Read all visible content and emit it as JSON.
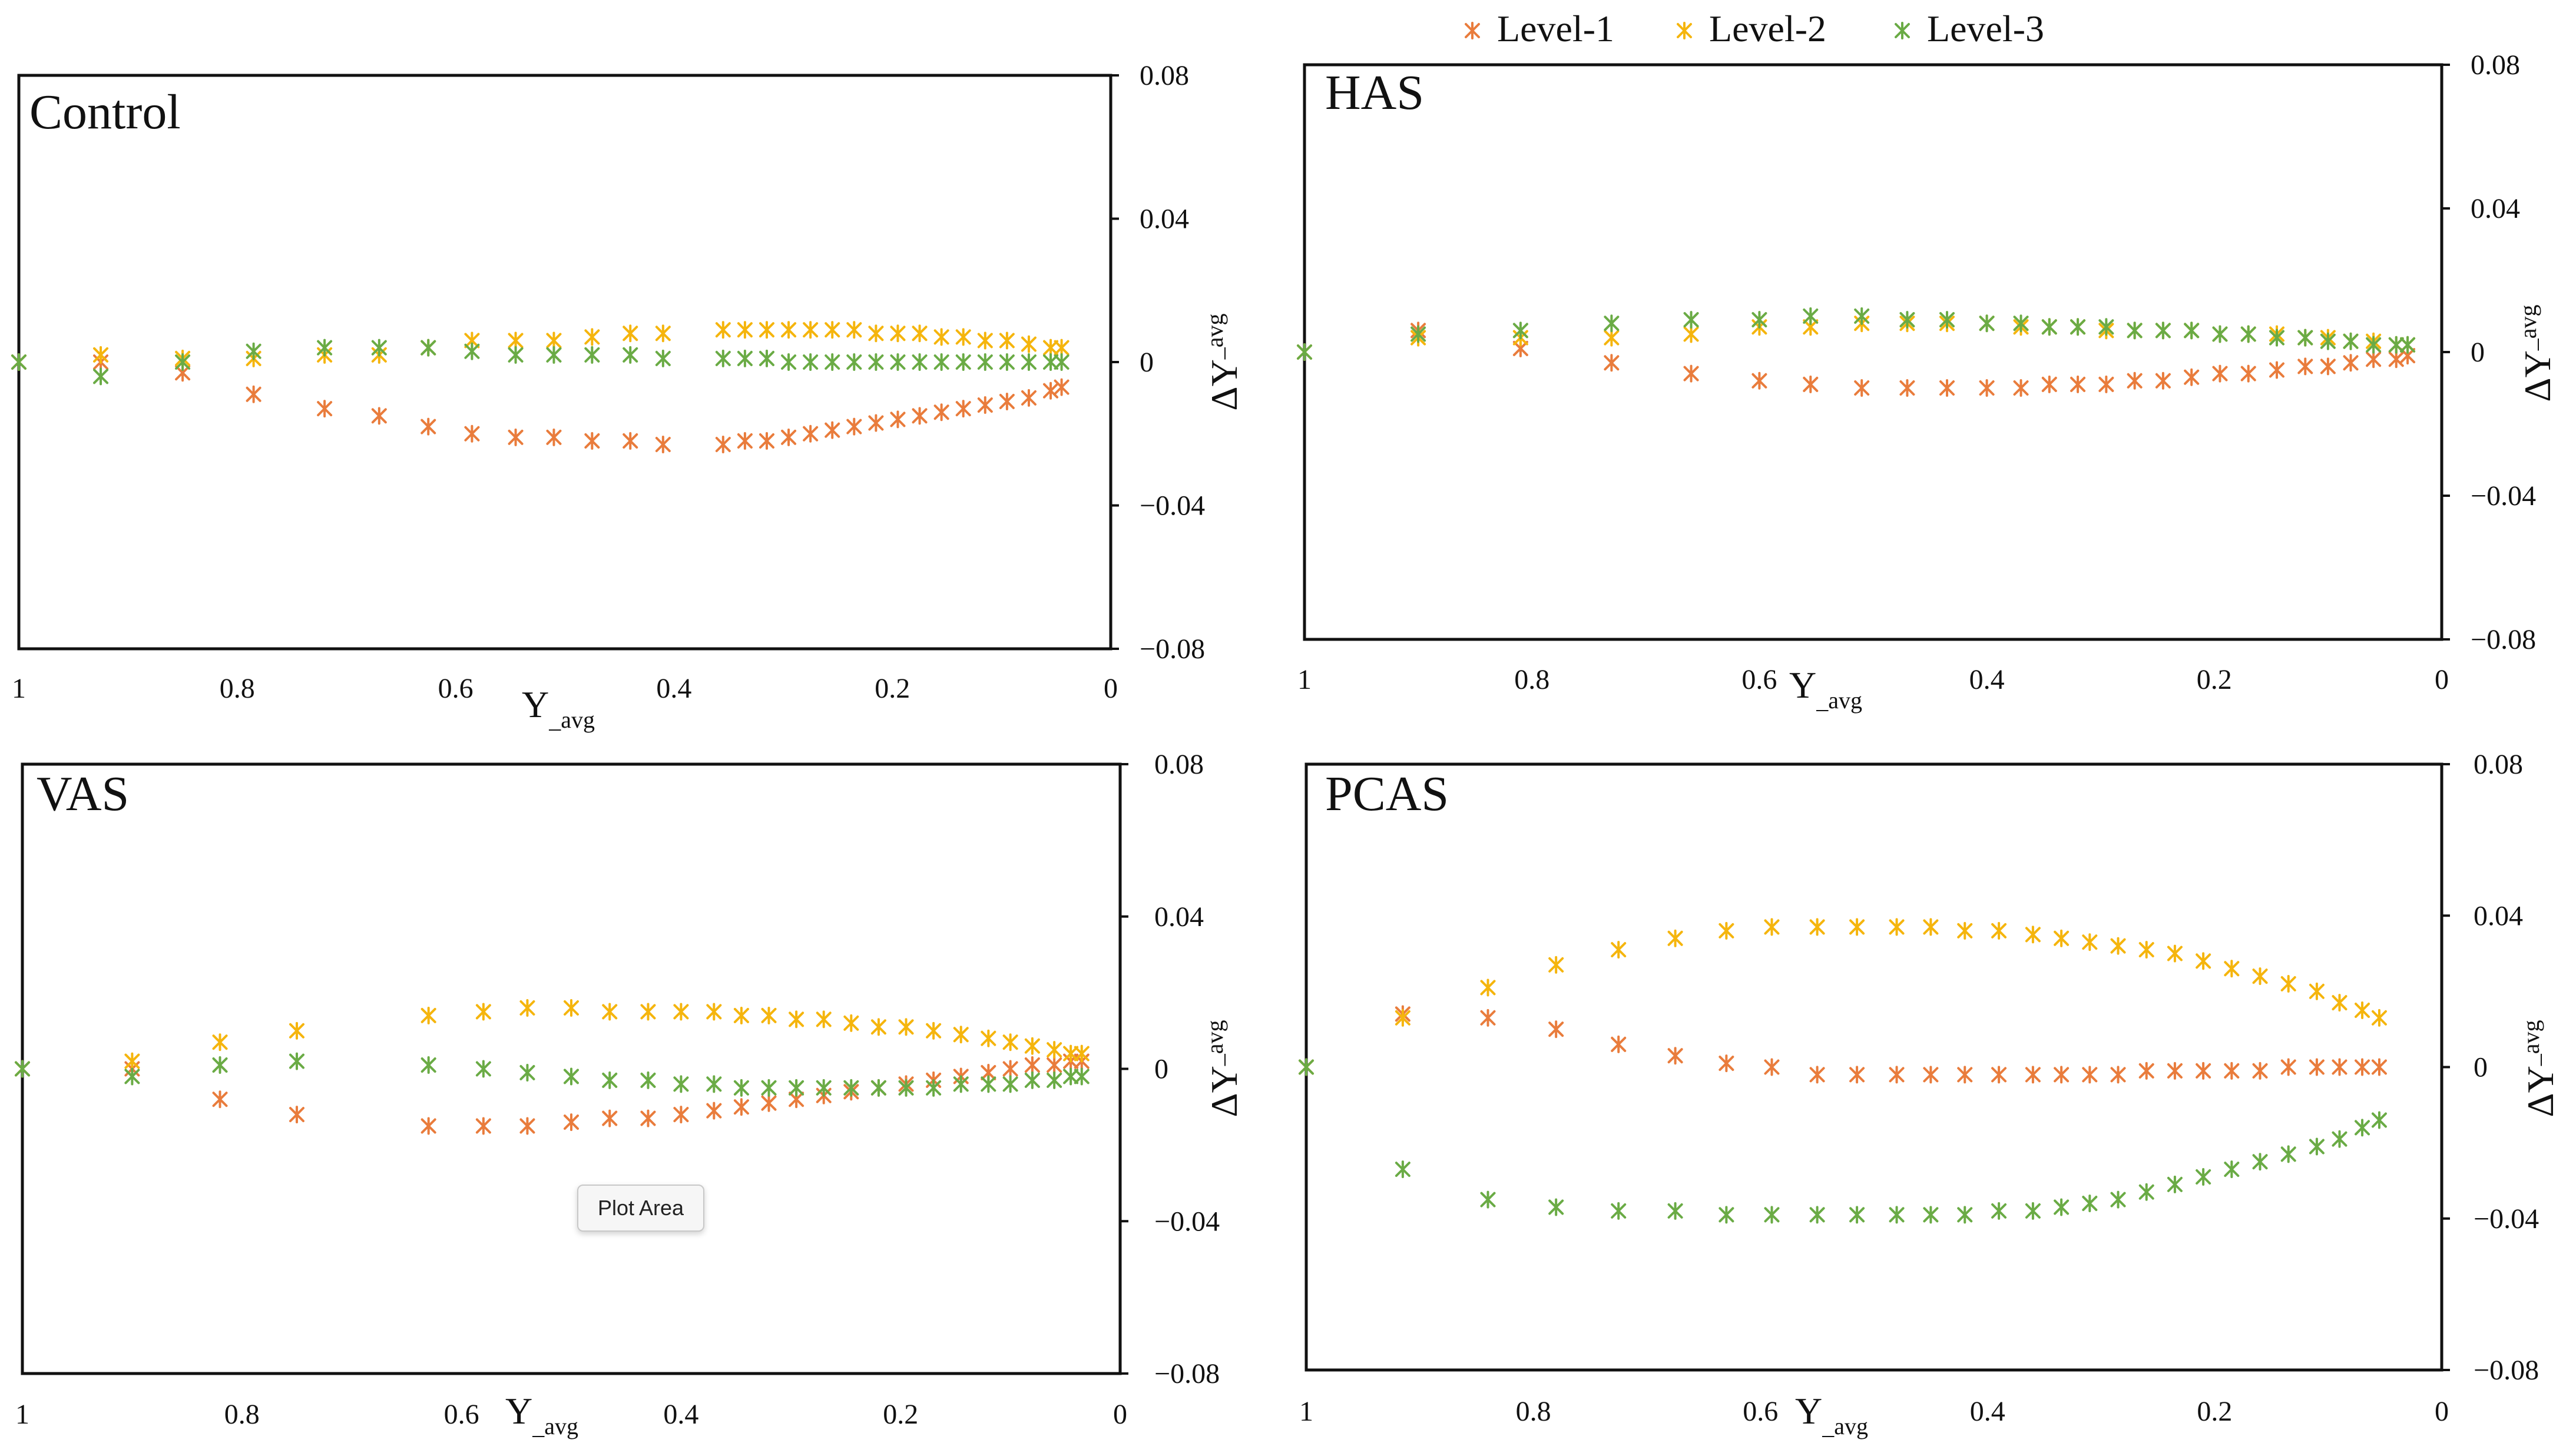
{
  "chart_data": [
    {
      "type": "scatter",
      "title": "Control",
      "xlabel": "Y_avg",
      "ylabel": "ΔY_avg",
      "xlim": [
        1,
        0
      ],
      "ylim": [
        -0.08,
        0.08
      ],
      "xticks": [
        "1",
        "0.8",
        "0.6",
        "0.4",
        "0.2",
        "0"
      ],
      "yticks": [
        "0.08",
        "0.04",
        "0",
        "−0.04",
        "−0.08"
      ],
      "series": [
        {
          "name": "Level-1",
          "x": [
            1,
            0.925,
            0.85,
            0.785,
            0.72,
            0.67,
            0.625,
            0.585,
            0.545,
            0.51,
            0.475,
            0.44,
            0.41,
            0.355,
            0.335,
            0.315,
            0.295,
            0.275,
            0.255,
            0.235,
            0.215,
            0.195,
            0.175,
            0.155,
            0.135,
            0.115,
            0.095,
            0.075,
            0.055,
            0.045
          ],
          "y": [
            0,
            0,
            -0.003,
            -0.009,
            -0.013,
            -0.015,
            -0.018,
            -0.02,
            -0.021,
            -0.021,
            -0.022,
            -0.022,
            -0.023,
            -0.023,
            -0.022,
            -0.022,
            -0.021,
            -0.02,
            -0.019,
            -0.018,
            -0.017,
            -0.016,
            -0.015,
            -0.014,
            -0.013,
            -0.012,
            -0.011,
            -0.01,
            -0.008,
            -0.007
          ]
        },
        {
          "name": "Level-2",
          "x": [
            1,
            0.925,
            0.85,
            0.785,
            0.72,
            0.67,
            0.625,
            0.585,
            0.545,
            0.51,
            0.475,
            0.44,
            0.41,
            0.355,
            0.335,
            0.315,
            0.295,
            0.275,
            0.255,
            0.235,
            0.215,
            0.195,
            0.175,
            0.155,
            0.135,
            0.115,
            0.095,
            0.075,
            0.055,
            0.045
          ],
          "y": [
            0,
            0.002,
            0.001,
            0.001,
            0.002,
            0.002,
            0.004,
            0.006,
            0.006,
            0.006,
            0.007,
            0.008,
            0.008,
            0.009,
            0.009,
            0.009,
            0.009,
            0.009,
            0.009,
            0.009,
            0.008,
            0.008,
            0.008,
            0.007,
            0.007,
            0.006,
            0.006,
            0.005,
            0.004,
            0.004
          ]
        },
        {
          "name": "Level-3",
          "x": [
            1,
            0.925,
            0.85,
            0.785,
            0.72,
            0.67,
            0.625,
            0.585,
            0.545,
            0.51,
            0.475,
            0.44,
            0.41,
            0.355,
            0.335,
            0.315,
            0.295,
            0.275,
            0.255,
            0.235,
            0.215,
            0.195,
            0.175,
            0.155,
            0.135,
            0.115,
            0.095,
            0.075,
            0.055,
            0.045
          ],
          "y": [
            0,
            -0.004,
            0,
            0.003,
            0.004,
            0.004,
            0.004,
            0.003,
            0.002,
            0.002,
            0.002,
            0.002,
            0.001,
            0.001,
            0.001,
            0.001,
            0,
            0,
            0,
            0,
            0,
            0,
            0,
            0,
            0,
            0,
            0,
            0,
            0,
            0
          ]
        }
      ]
    },
    {
      "type": "scatter",
      "title": "HAS",
      "xlabel": "Y_avg",
      "ylabel": "ΔY_avg",
      "xlim": [
        1,
        0
      ],
      "ylim": [
        -0.08,
        0.08
      ],
      "xticks": [
        "1",
        "0.8",
        "0.6",
        "0.4",
        "0.2",
        "0"
      ],
      "yticks": [
        "0.08",
        "0.04",
        "0",
        "−0.04",
        "−0.08"
      ],
      "series": [
        {
          "name": "Level-1",
          "x": [
            1,
            0.9,
            0.81,
            0.73,
            0.66,
            0.6,
            0.555,
            0.51,
            0.47,
            0.435,
            0.4,
            0.37,
            0.345,
            0.32,
            0.295,
            0.27,
            0.245,
            0.22,
            0.195,
            0.17,
            0.145,
            0.12,
            0.1,
            0.08,
            0.06,
            0.04,
            0.03
          ],
          "y": [
            0,
            0.006,
            0.001,
            -0.003,
            -0.006,
            -0.008,
            -0.009,
            -0.01,
            -0.01,
            -0.01,
            -0.01,
            -0.01,
            -0.009,
            -0.009,
            -0.009,
            -0.008,
            -0.008,
            -0.007,
            -0.006,
            -0.006,
            -0.005,
            -0.004,
            -0.004,
            -0.003,
            -0.002,
            -0.002,
            -0.001
          ]
        },
        {
          "name": "Level-2",
          "x": [
            1,
            0.9,
            0.81,
            0.73,
            0.66,
            0.6,
            0.555,
            0.51,
            0.47,
            0.435,
            0.4,
            0.37,
            0.345,
            0.32,
            0.295,
            0.27,
            0.245,
            0.22,
            0.195,
            0.17,
            0.145,
            0.12,
            0.1,
            0.08,
            0.06,
            0.04,
            0.03
          ],
          "y": [
            0,
            0.004,
            0.004,
            0.004,
            0.005,
            0.007,
            0.007,
            0.008,
            0.008,
            0.008,
            0.008,
            0.007,
            0.007,
            0.007,
            0.006,
            0.006,
            0.006,
            0.006,
            0.005,
            0.005,
            0.005,
            0.004,
            0.004,
            0.003,
            0.003,
            0.002,
            0.002
          ]
        },
        {
          "name": "Level-3",
          "x": [
            1,
            0.9,
            0.81,
            0.73,
            0.66,
            0.6,
            0.555,
            0.51,
            0.47,
            0.435,
            0.4,
            0.37,
            0.345,
            0.32,
            0.295,
            0.27,
            0.245,
            0.22,
            0.195,
            0.17,
            0.145,
            0.12,
            0.1,
            0.08,
            0.06,
            0.04,
            0.03
          ],
          "y": [
            0,
            0.005,
            0.006,
            0.008,
            0.009,
            0.009,
            0.01,
            0.01,
            0.009,
            0.009,
            0.008,
            0.008,
            0.007,
            0.007,
            0.007,
            0.006,
            0.006,
            0.006,
            0.005,
            0.005,
            0.004,
            0.004,
            0.003,
            0.003,
            0.002,
            0.002,
            0.002
          ]
        }
      ]
    },
    {
      "type": "scatter",
      "title": "VAS",
      "xlabel": "Y_avg",
      "ylabel": "ΔY_avg",
      "xlim": [
        1,
        0
      ],
      "ylim": [
        -0.08,
        0.08
      ],
      "xticks": [
        "1",
        "0.8",
        "0.6",
        "0.4",
        "0.2",
        "0"
      ],
      "yticks": [
        "0.08",
        "0.04",
        "0",
        "−0.04",
        "−0.08"
      ],
      "series": [
        {
          "name": "Level-1",
          "x": [
            1,
            0.9,
            0.82,
            0.75,
            0.63,
            0.58,
            0.54,
            0.5,
            0.465,
            0.43,
            0.4,
            0.37,
            0.345,
            0.32,
            0.295,
            0.27,
            0.245,
            0.22,
            0.195,
            0.17,
            0.145,
            0.12,
            0.1,
            0.08,
            0.06,
            0.045,
            0.035
          ],
          "y": [
            0,
            0,
            -0.008,
            -0.012,
            -0.015,
            -0.015,
            -0.015,
            -0.014,
            -0.013,
            -0.013,
            -0.012,
            -0.011,
            -0.01,
            -0.009,
            -0.008,
            -0.007,
            -0.006,
            -0.005,
            -0.004,
            -0.003,
            -0.002,
            -0.001,
            0,
            0.001,
            0.001,
            0.002,
            0.002
          ]
        },
        {
          "name": "Level-2",
          "x": [
            1,
            0.9,
            0.82,
            0.75,
            0.63,
            0.58,
            0.54,
            0.5,
            0.465,
            0.43,
            0.4,
            0.37,
            0.345,
            0.32,
            0.295,
            0.27,
            0.245,
            0.22,
            0.195,
            0.17,
            0.145,
            0.12,
            0.1,
            0.08,
            0.06,
            0.045,
            0.035
          ],
          "y": [
            0,
            0.002,
            0.007,
            0.01,
            0.014,
            0.015,
            0.016,
            0.016,
            0.015,
            0.015,
            0.015,
            0.015,
            0.014,
            0.014,
            0.013,
            0.013,
            0.012,
            0.011,
            0.011,
            0.01,
            0.009,
            0.008,
            0.007,
            0.006,
            0.005,
            0.004,
            0.004
          ]
        },
        {
          "name": "Level-3",
          "x": [
            1,
            0.9,
            0.82,
            0.75,
            0.63,
            0.58,
            0.54,
            0.5,
            0.465,
            0.43,
            0.4,
            0.37,
            0.345,
            0.32,
            0.295,
            0.27,
            0.245,
            0.22,
            0.195,
            0.17,
            0.145,
            0.12,
            0.1,
            0.08,
            0.06,
            0.045,
            0.035
          ],
          "y": [
            0,
            -0.002,
            0.001,
            0.002,
            0.001,
            0,
            -0.001,
            -0.002,
            -0.003,
            -0.003,
            -0.004,
            -0.004,
            -0.005,
            -0.005,
            -0.005,
            -0.005,
            -0.005,
            -0.005,
            -0.005,
            -0.005,
            -0.004,
            -0.004,
            -0.004,
            -0.003,
            -0.003,
            -0.002,
            -0.002
          ]
        }
      ]
    },
    {
      "type": "scatter",
      "title": "PCAS",
      "xlabel": "Y_avg",
      "ylabel": "ΔY_avg",
      "xlim": [
        1,
        0
      ],
      "ylim": [
        -0.08,
        0.08
      ],
      "xticks": [
        "1",
        "0.8",
        "0.6",
        "0.4",
        "0.2",
        "0"
      ],
      "yticks": [
        "0.08",
        "0.04",
        "0",
        "−0.04",
        "−0.08"
      ],
      "series": [
        {
          "name": "Level-1",
          "x": [
            1,
            0.915,
            0.84,
            0.78,
            0.725,
            0.675,
            0.63,
            0.59,
            0.55,
            0.515,
            0.48,
            0.45,
            0.42,
            0.39,
            0.36,
            0.335,
            0.31,
            0.285,
            0.26,
            0.235,
            0.21,
            0.185,
            0.16,
            0.135,
            0.11,
            0.09,
            0.07,
            0.055
          ],
          "y": [
            0,
            0.014,
            0.013,
            0.01,
            0.006,
            0.003,
            0.001,
            0,
            -0.002,
            -0.002,
            -0.002,
            -0.002,
            -0.002,
            -0.002,
            -0.002,
            -0.002,
            -0.002,
            -0.002,
            -0.001,
            -0.001,
            -0.001,
            -0.001,
            -0.001,
            0,
            0,
            0,
            0,
            0
          ]
        },
        {
          "name": "Level-2",
          "x": [
            1,
            0.915,
            0.84,
            0.78,
            0.725,
            0.675,
            0.63,
            0.59,
            0.55,
            0.515,
            0.48,
            0.45,
            0.42,
            0.39,
            0.36,
            0.335,
            0.31,
            0.285,
            0.26,
            0.235,
            0.21,
            0.185,
            0.16,
            0.135,
            0.11,
            0.09,
            0.07,
            0.055
          ],
          "y": [
            0,
            0.013,
            0.021,
            0.027,
            0.031,
            0.034,
            0.036,
            0.037,
            0.037,
            0.037,
            0.037,
            0.037,
            0.036,
            0.036,
            0.035,
            0.034,
            0.033,
            0.032,
            0.031,
            0.03,
            0.028,
            0.026,
            0.024,
            0.022,
            0.02,
            0.017,
            0.015,
            0.013
          ]
        },
        {
          "name": "Level-3",
          "x": [
            1,
            0.915,
            0.84,
            0.78,
            0.725,
            0.675,
            0.63,
            0.59,
            0.55,
            0.515,
            0.48,
            0.45,
            0.42,
            0.39,
            0.36,
            0.335,
            0.31,
            0.285,
            0.26,
            0.235,
            0.21,
            0.185,
            0.16,
            0.135,
            0.11,
            0.09,
            0.07,
            0.055
          ],
          "y": [
            0,
            -0.027,
            -0.035,
            -0.037,
            -0.038,
            -0.038,
            -0.039,
            -0.039,
            -0.039,
            -0.039,
            -0.039,
            -0.039,
            -0.039,
            -0.038,
            -0.038,
            -0.037,
            -0.036,
            -0.035,
            -0.033,
            -0.031,
            -0.029,
            -0.027,
            -0.025,
            -0.023,
            -0.021,
            -0.019,
            -0.016,
            -0.014
          ]
        }
      ]
    }
  ],
  "legend": {
    "position": "top-right",
    "items": [
      {
        "label": "Level-1",
        "color": "#e97c3c"
      },
      {
        "label": "Level-2",
        "color": "#f5b50d"
      },
      {
        "label": "Level-3",
        "color": "#6aab45"
      }
    ]
  },
  "tooltip": {
    "label": "Plot Area"
  },
  "colors": {
    "axis": "#111111",
    "background": "#ffffff"
  }
}
